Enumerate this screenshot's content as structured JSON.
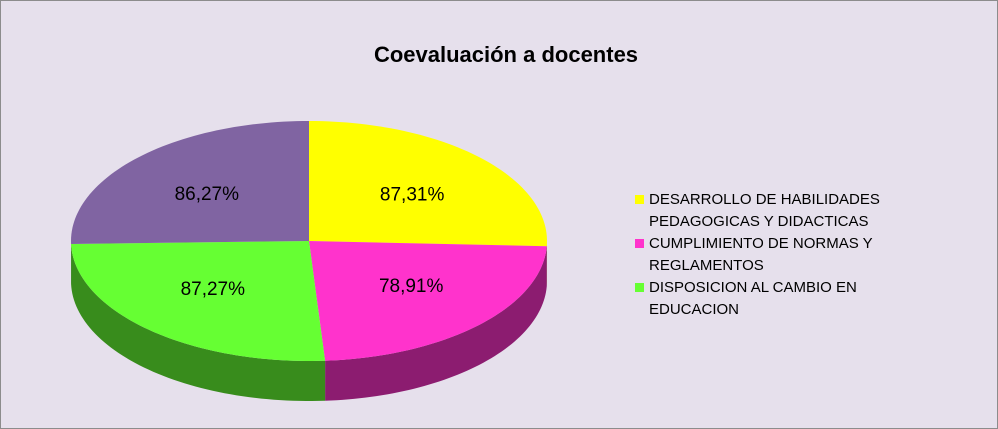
{
  "chart_data": {
    "type": "pie",
    "title": "Coevaluación a docentes",
    "categories": [
      "DESARROLLO DE HABILIDADES PEDAGOGICAS Y DIDACTICAS",
      "CUMPLIMIENTO DE NORMAS Y REGLAMENTOS",
      "DISPOSICION AL CAMBIO EN EDUCACION",
      null
    ],
    "values": [
      87.31,
      78.91,
      87.27,
      86.27
    ],
    "value_labels": [
      "87,31%",
      "78,91%",
      "87,27%",
      "86,27%"
    ],
    "colors": [
      "#ffff00",
      "#ff33cc",
      "#66ff33",
      "#8064a2"
    ],
    "legend": "right"
  }
}
